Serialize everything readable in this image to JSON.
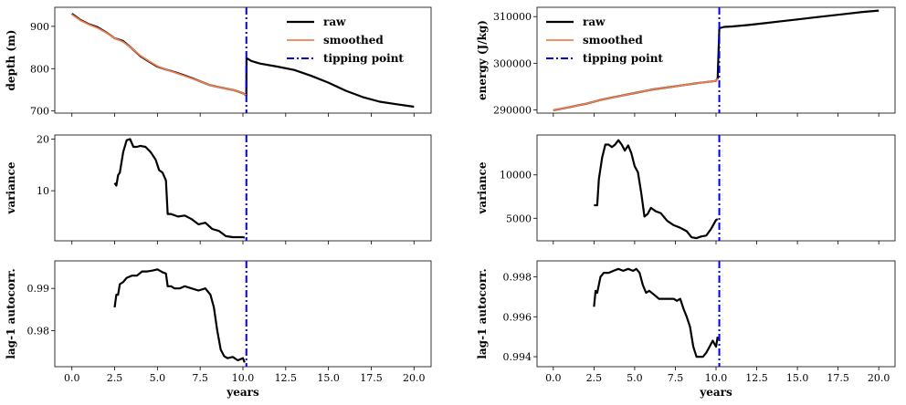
{
  "chart_data": [
    {
      "type": "line",
      "panel": "depth",
      "ylabel": "depth (m)",
      "xlabel": "",
      "xlim": [
        -1,
        21
      ],
      "ylim": [
        695,
        945
      ],
      "yticks": [
        700,
        800,
        900
      ],
      "xticks": [
        0.0,
        2.5,
        5.0,
        7.5,
        10.0,
        12.5,
        15.0,
        17.5,
        20.0
      ],
      "legend": "top-right",
      "tipping_point": 10.2,
      "series": [
        {
          "name": "raw",
          "color": "#000000",
          "x": [
            0,
            0.5,
            1,
            1.5,
            2,
            2.5,
            3,
            3.5,
            4,
            4.5,
            5,
            5.5,
            6,
            6.5,
            7,
            7.5,
            8,
            8.5,
            9,
            9.5,
            10,
            10.2,
            10.21,
            10.5,
            11,
            12,
            13,
            14,
            15,
            16,
            17,
            18,
            19,
            20
          ],
          "y": [
            930,
            915,
            905,
            898,
            886,
            872,
            865,
            848,
            830,
            817,
            805,
            798,
            792,
            785,
            778,
            770,
            762,
            757,
            753,
            749,
            742,
            737,
            825,
            818,
            812,
            805,
            797,
            783,
            767,
            748,
            733,
            722,
            716,
            710
          ]
        },
        {
          "name": "smoothed",
          "color": "#f08050",
          "x": [
            0,
            0.5,
            1,
            1.5,
            2,
            2.5,
            3,
            3.5,
            4,
            4.5,
            5,
            5.5,
            6,
            6.5,
            7,
            7.5,
            8,
            8.5,
            9,
            9.5,
            10,
            10.2
          ],
          "y": [
            928,
            914,
            904,
            896,
            885,
            872,
            863,
            848,
            831,
            818,
            806,
            798,
            791,
            784,
            777,
            770,
            762,
            757,
            753,
            749,
            742,
            737
          ]
        }
      ],
      "vline": {
        "name": "tipping point",
        "color": "#0000ee",
        "x": 10.2
      }
    },
    {
      "type": "line",
      "panel": "energy",
      "ylabel": "energy (J/kg)",
      "xlabel": "",
      "xlim": [
        -1,
        21
      ],
      "ylim": [
        289300,
        312000
      ],
      "yticks": [
        290000,
        300000,
        310000
      ],
      "xticks": [
        0.0,
        2.5,
        5.0,
        7.5,
        10.0,
        12.5,
        15.0,
        17.5,
        20.0
      ],
      "legend": "top-left",
      "tipping_point": 10.2,
      "series": [
        {
          "name": "raw",
          "color": "#000000",
          "x": [
            0,
            1,
            2,
            3,
            4,
            5,
            6,
            7,
            8,
            9,
            10,
            10.1,
            10.2,
            10.5,
            11,
            12,
            13,
            14,
            15,
            16,
            17,
            18,
            19,
            20
          ],
          "y": [
            289900,
            290600,
            291300,
            292200,
            292900,
            293600,
            294300,
            294800,
            295300,
            295800,
            296200,
            296800,
            307500,
            307800,
            307900,
            308200,
            308600,
            309000,
            309400,
            309800,
            310200,
            310600,
            311000,
            311300
          ]
        },
        {
          "name": "smoothed",
          "color": "#f08050",
          "x": [
            0,
            1,
            2,
            3,
            4,
            5,
            6,
            7,
            8,
            9,
            10,
            10.1
          ],
          "y": [
            289900,
            290600,
            291300,
            292200,
            292900,
            293600,
            294300,
            294800,
            295300,
            295800,
            296200,
            296700
          ]
        }
      ],
      "vline": {
        "name": "tipping point",
        "color": "#0000ee",
        "x": 10.2
      }
    },
    {
      "type": "line",
      "panel": "variance-left",
      "ylabel": "variance",
      "xlabel": "",
      "xlim": [
        -1,
        21
      ],
      "ylim": [
        0.3,
        20.8
      ],
      "yticks": [
        10,
        20
      ],
      "xticks": [
        0.0,
        2.5,
        5.0,
        7.5,
        10.0,
        12.5,
        15.0,
        17.5,
        20.0
      ],
      "series": [
        {
          "name": "",
          "color": "#000000",
          "x": [
            2.5,
            2.6,
            2.7,
            2.8,
            3.0,
            3.2,
            3.4,
            3.6,
            3.8,
            4.0,
            4.3,
            4.6,
            4.9,
            5.1,
            5.3,
            5.5,
            5.6,
            5.8,
            6.2,
            6.6,
            7.0,
            7.4,
            7.8,
            8.2,
            8.6,
            9.0,
            9.4,
            10.0,
            10.1
          ],
          "y": [
            11.5,
            11,
            13,
            13.5,
            17.5,
            19.8,
            20,
            18.5,
            18.5,
            18.7,
            18.5,
            17.5,
            16,
            14,
            13.5,
            12,
            5.5,
            5.5,
            5,
            5.2,
            4.5,
            3.5,
            3.8,
            2.6,
            2.2,
            1.2,
            1.0,
            1.0,
            0.9
          ]
        }
      ],
      "vline": {
        "name": "tipping point",
        "color": "#0000ee",
        "x": 10.2
      }
    },
    {
      "type": "line",
      "panel": "variance-right",
      "ylabel": "variance",
      "xlabel": "",
      "xlim": [
        -1,
        21
      ],
      "ylim": [
        2400,
        14600
      ],
      "yticks": [
        5000,
        10000
      ],
      "xticks": [
        0.0,
        2.5,
        5.0,
        7.5,
        10.0,
        12.5,
        15.0,
        17.5,
        20.0
      ],
      "series": [
        {
          "name": "",
          "color": "#000000",
          "x": [
            2.5,
            2.7,
            2.8,
            3.0,
            3.2,
            3.4,
            3.6,
            3.8,
            4.0,
            4.2,
            4.4,
            4.6,
            4.8,
            5.0,
            5.2,
            5.4,
            5.6,
            5.8,
            6.0,
            6.3,
            6.6,
            7.0,
            7.4,
            7.8,
            8.2,
            8.5,
            8.8,
            9.1,
            9.4,
            9.7,
            10.0,
            10.1
          ],
          "y": [
            6500,
            6500,
            9500,
            12000,
            13500,
            13500,
            13200,
            13500,
            14000,
            13500,
            12800,
            13400,
            12500,
            11000,
            10300,
            8000,
            5200,
            5500,
            6200,
            5800,
            5600,
            4700,
            4200,
            3900,
            3500,
            2800,
            2700,
            2900,
            3000,
            3800,
            4800,
            4900
          ]
        }
      ],
      "vline": {
        "name": "tipping point",
        "color": "#0000ee",
        "x": 10.2
      }
    },
    {
      "type": "line",
      "panel": "autocorr-left",
      "ylabel": "lag-1 autocorr.",
      "xlabel": "years",
      "xlim": [
        -1,
        21
      ],
      "ylim": [
        0.9715,
        0.9965
      ],
      "yticks": [
        0.98,
        0.99
      ],
      "xticks": [
        0.0,
        2.5,
        5.0,
        7.5,
        10.0,
        12.5,
        15.0,
        17.5,
        20.0
      ],
      "series": [
        {
          "name": "",
          "color": "#000000",
          "x": [
            2.5,
            2.6,
            2.7,
            2.8,
            3.0,
            3.2,
            3.5,
            3.8,
            4.1,
            4.4,
            4.7,
            5.0,
            5.3,
            5.5,
            5.6,
            5.8,
            6.0,
            6.3,
            6.6,
            7.0,
            7.4,
            7.8,
            8.1,
            8.3,
            8.5,
            8.7,
            8.9,
            9.1,
            9.4,
            9.7,
            10.0,
            10.1
          ],
          "y": [
            0.9855,
            0.9885,
            0.9885,
            0.991,
            0.9915,
            0.9925,
            0.993,
            0.993,
            0.994,
            0.994,
            0.9942,
            0.9945,
            0.9938,
            0.9935,
            0.9905,
            0.9905,
            0.99,
            0.99,
            0.9905,
            0.99,
            0.9895,
            0.99,
            0.9885,
            0.9855,
            0.98,
            0.9755,
            0.974,
            0.9735,
            0.9738,
            0.973,
            0.9735,
            0.9725
          ]
        }
      ],
      "vline": {
        "name": "tipping point",
        "color": "#0000ee",
        "x": 10.2
      }
    },
    {
      "type": "line",
      "panel": "autocorr-right",
      "ylabel": "lag-1 autocorr.",
      "xlabel": "years",
      "xlim": [
        -1,
        21
      ],
      "ylim": [
        0.9935,
        0.9988
      ],
      "yticks": [
        0.994,
        0.996,
        0.998
      ],
      "xticks": [
        0.0,
        2.5,
        5.0,
        7.5,
        10.0,
        12.5,
        15.0,
        17.5,
        20.0
      ],
      "series": [
        {
          "name": "",
          "color": "#000000",
          "x": [
            2.5,
            2.6,
            2.7,
            2.9,
            3.1,
            3.4,
            3.7,
            4.0,
            4.3,
            4.6,
            4.9,
            5.1,
            5.3,
            5.5,
            5.7,
            5.9,
            6.2,
            6.5,
            6.8,
            7.1,
            7.4,
            7.6,
            7.8,
            8.0,
            8.2,
            8.4,
            8.6,
            8.8,
            9.0,
            9.2,
            9.4,
            9.6,
            9.8,
            10.0,
            10.1
          ],
          "y": [
            0.9965,
            0.9973,
            0.9972,
            0.998,
            0.9982,
            0.9982,
            0.9983,
            0.9984,
            0.9983,
            0.9984,
            0.9983,
            0.9984,
            0.9982,
            0.9976,
            0.9972,
            0.9973,
            0.9971,
            0.9969,
            0.9969,
            0.9969,
            0.9969,
            0.9968,
            0.9969,
            0.9964,
            0.996,
            0.9955,
            0.9945,
            0.994,
            0.994,
            0.994,
            0.9942,
            0.9945,
            0.9948,
            0.9945,
            0.995
          ]
        }
      ],
      "vline": {
        "name": "tipping point",
        "color": "#0000ee",
        "x": 10.2
      }
    }
  ]
}
